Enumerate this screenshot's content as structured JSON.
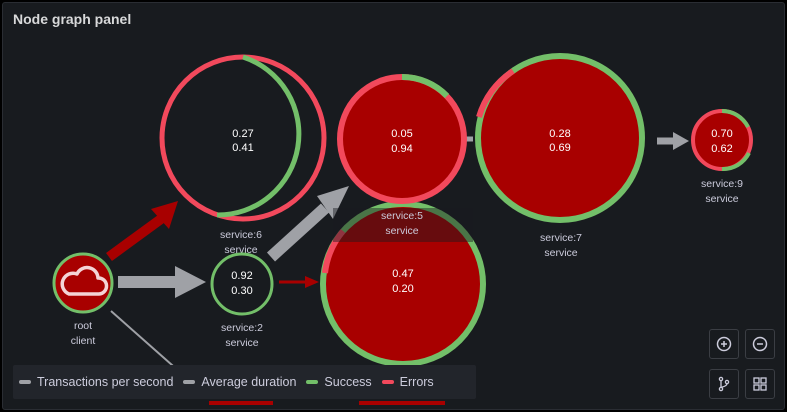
{
  "panel": {
    "title": "Node graph panel"
  },
  "nodes": [
    {
      "id": "root",
      "title": "root",
      "subtitle": "client",
      "stat1": "",
      "stat2": "",
      "icon": "cloud-icon",
      "success": 1.0
    },
    {
      "id": "service6",
      "title": "service:6",
      "subtitle": "service",
      "stat1": "0.27",
      "stat2": "0.41",
      "success": 0.55
    },
    {
      "id": "service2",
      "title": "service:2",
      "subtitle": "service",
      "stat1": "0.92",
      "stat2": "0.30",
      "success": 1.0
    },
    {
      "id": "service5",
      "title": "service:5",
      "subtitle": "service",
      "stat1": "0.05",
      "stat2": "0.94",
      "success": 0.15
    },
    {
      "id": "service_mid",
      "title": "",
      "subtitle": "",
      "stat1": "0.47",
      "stat2": "0.20",
      "success": 0.88
    },
    {
      "id": "service7",
      "title": "service:7",
      "subtitle": "service",
      "stat1": "0.28",
      "stat2": "0.69",
      "success": 0.92
    },
    {
      "id": "service9",
      "title": "service:9",
      "subtitle": "service",
      "stat1": "0.70",
      "stat2": "0.62",
      "success": 0.35
    }
  ],
  "legend": [
    {
      "label": "Transactions per second",
      "color": "#9fa1a6"
    },
    {
      "label": "Average duration",
      "color": "#9fa1a6"
    },
    {
      "label": "Success",
      "color": "#73bf69"
    },
    {
      "label": "Errors",
      "color": "#f2495c"
    }
  ],
  "controls": {
    "zoom_in": "zoom-in-icon",
    "zoom_out": "zoom-out-icon",
    "layout": "layout-icon",
    "grid": "grid-view-icon"
  },
  "colors": {
    "success": "#73bf69",
    "error": "#f2495c",
    "node_fill_error": "#a80000",
    "edge_gray": "#9fa1a6",
    "edge_red": "#a80000"
  }
}
